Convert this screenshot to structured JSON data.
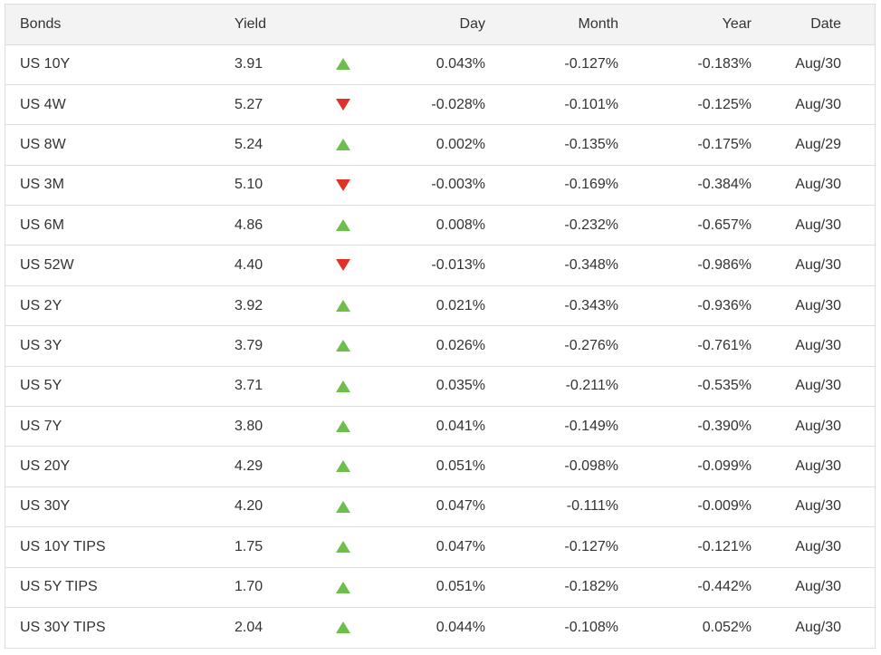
{
  "header": {
    "bonds": "Bonds",
    "yield": "Yield",
    "day": "Day",
    "month": "Month",
    "year": "Year",
    "date": "Date"
  },
  "colors": {
    "up": "#6cbf4a",
    "down": "#e0312b",
    "header_bg": "#f3f3f3",
    "border": "#dddddd"
  },
  "rows": [
    {
      "name": "US 10Y",
      "yield": "3.91",
      "direction": "up",
      "day": "0.043%",
      "month": "-0.127%",
      "year": "-0.183%",
      "date": "Aug/30"
    },
    {
      "name": "US 4W",
      "yield": "5.27",
      "direction": "down",
      "day": "-0.028%",
      "month": "-0.101%",
      "year": "-0.125%",
      "date": "Aug/30"
    },
    {
      "name": "US 8W",
      "yield": "5.24",
      "direction": "up",
      "day": "0.002%",
      "month": "-0.135%",
      "year": "-0.175%",
      "date": "Aug/29"
    },
    {
      "name": "US 3M",
      "yield": "5.10",
      "direction": "down",
      "day": "-0.003%",
      "month": "-0.169%",
      "year": "-0.384%",
      "date": "Aug/30"
    },
    {
      "name": "US 6M",
      "yield": "4.86",
      "direction": "up",
      "day": "0.008%",
      "month": "-0.232%",
      "year": "-0.657%",
      "date": "Aug/30"
    },
    {
      "name": "US 52W",
      "yield": "4.40",
      "direction": "down",
      "day": "-0.013%",
      "month": "-0.348%",
      "year": "-0.986%",
      "date": "Aug/30"
    },
    {
      "name": "US 2Y",
      "yield": "3.92",
      "direction": "up",
      "day": "0.021%",
      "month": "-0.343%",
      "year": "-0.936%",
      "date": "Aug/30"
    },
    {
      "name": "US 3Y",
      "yield": "3.79",
      "direction": "up",
      "day": "0.026%",
      "month": "-0.276%",
      "year": "-0.761%",
      "date": "Aug/30"
    },
    {
      "name": "US 5Y",
      "yield": "3.71",
      "direction": "up",
      "day": "0.035%",
      "month": "-0.211%",
      "year": "-0.535%",
      "date": "Aug/30"
    },
    {
      "name": "US 7Y",
      "yield": "3.80",
      "direction": "up",
      "day": "0.041%",
      "month": "-0.149%",
      "year": "-0.390%",
      "date": "Aug/30"
    },
    {
      "name": "US 20Y",
      "yield": "4.29",
      "direction": "up",
      "day": "0.051%",
      "month": "-0.098%",
      "year": "-0.099%",
      "date": "Aug/30"
    },
    {
      "name": "US 30Y",
      "yield": "4.20",
      "direction": "up",
      "day": "0.047%",
      "month": "-0.111%",
      "year": "-0.009%",
      "date": "Aug/30"
    },
    {
      "name": "US 10Y TIPS",
      "yield": "1.75",
      "direction": "up",
      "day": "0.047%",
      "month": "-0.127%",
      "year": "-0.121%",
      "date": "Aug/30"
    },
    {
      "name": "US 5Y TIPS",
      "yield": "1.70",
      "direction": "up",
      "day": "0.051%",
      "month": "-0.182%",
      "year": "-0.442%",
      "date": "Aug/30"
    },
    {
      "name": "US 30Y TIPS",
      "yield": "2.04",
      "direction": "up",
      "day": "0.044%",
      "month": "-0.108%",
      "year": "0.052%",
      "date": "Aug/30"
    }
  ]
}
